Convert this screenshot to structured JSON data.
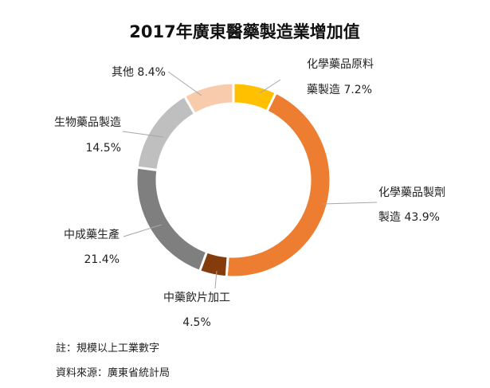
{
  "chart_data": {
    "type": "pie",
    "title": "2017年廣東醫藥製造業增加值",
    "slices": [
      {
        "name_lines": [
          "化學藥品原料",
          "藥製造"
        ],
        "value": 7.2,
        "value_text": "7.2%",
        "color": "#FFC000"
      },
      {
        "name_lines": [
          "化學藥品製劑",
          "製造"
        ],
        "value": 43.9,
        "value_text": "43.9%",
        "color": "#ED7D31"
      },
      {
        "name_lines": [
          "中藥飲片加工"
        ],
        "value": 4.5,
        "value_text": "4.5%",
        "color": "#843C0C"
      },
      {
        "name_lines": [
          "中成藥生產"
        ],
        "value": 21.4,
        "value_text": "21.4%",
        "color": "#7F7F7F"
      },
      {
        "name_lines": [
          "生物藥品製造"
        ],
        "value": 14.5,
        "value_text": "14.5%",
        "color": "#BFBFBF"
      },
      {
        "name_lines": [
          "其他"
        ],
        "value": 8.4,
        "value_text": "8.4%",
        "color": "#F8CBAD"
      }
    ]
  },
  "footnotes": {
    "note": "註：規模以上工業數字",
    "source": "資料來源：廣東省統計局"
  }
}
